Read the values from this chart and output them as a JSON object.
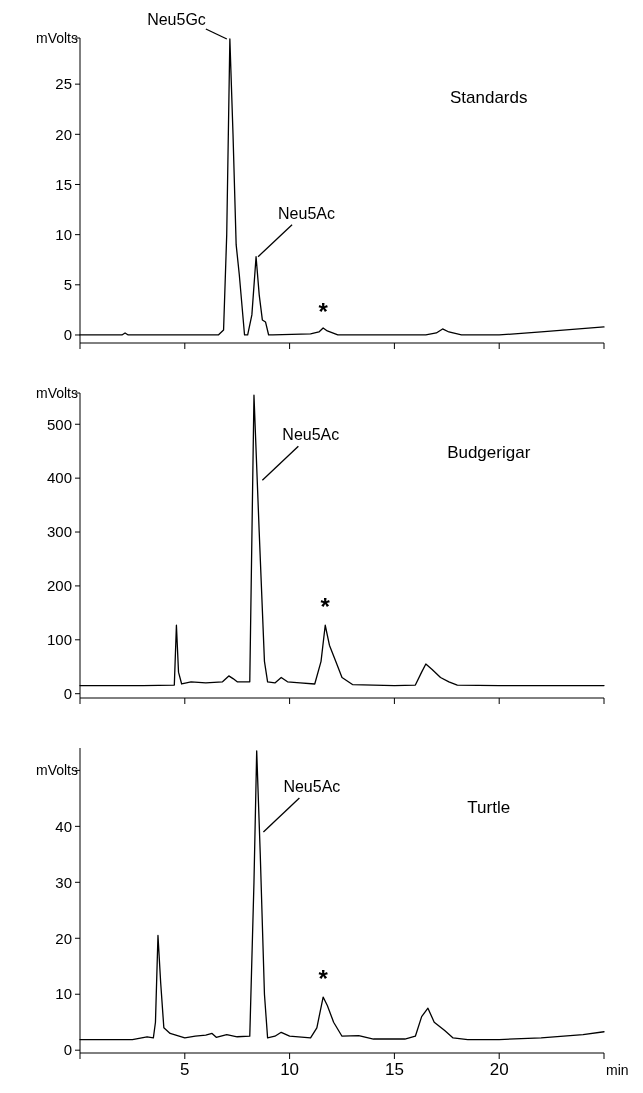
{
  "chart_data": [
    {
      "type": "line",
      "title": "Standards",
      "ylabel": "mVolts",
      "color": "#000000",
      "tick_labels": "y",
      "x": [
        0,
        2.0,
        2.15,
        2.3,
        6.6,
        6.85,
        7.0,
        7.15,
        7.3,
        7.45,
        7.6,
        7.85,
        8.0,
        8.2,
        8.4,
        8.55,
        8.7,
        8.85,
        9.0,
        9.2,
        11.0,
        11.4,
        11.6,
        11.8,
        12.3,
        13,
        16.5,
        17.0,
        17.3,
        17.6,
        18.2,
        20,
        22,
        25
      ],
      "values": [
        0,
        0,
        0.2,
        0,
        0,
        0.5,
        10,
        29.5,
        20,
        9,
        6,
        0,
        0,
        2,
        7.8,
        4,
        1.5,
        1.3,
        0,
        0,
        0.1,
        0.3,
        0.7,
        0.4,
        0,
        0,
        0,
        0.2,
        0.6,
        0.3,
        0,
        0,
        0.3,
        0.8
      ],
      "xlim": [
        0,
        25
      ],
      "xticks": [
        {
          "value": 0,
          "label": null
        },
        {
          "value": 5,
          "label": null
        },
        {
          "value": 10,
          "label": null
        },
        {
          "value": 15,
          "label": null
        },
        {
          "value": 20,
          "label": null
        },
        {
          "value": 25,
          "label": null
        }
      ],
      "ylim": [
        -0.8,
        29.6
      ],
      "yticks": [
        0,
        5,
        10,
        15,
        20,
        25,
        {
          "value": 29.6,
          "label": null
        }
      ],
      "annotations": [
        {
          "text": "Neu5Gc",
          "x": 7.15,
          "y": 29.5
        },
        {
          "text": "Neu5Ac",
          "x": 8.4,
          "y": 7.8
        },
        {
          "text": "*",
          "x": 11.6,
          "y": 0.7
        }
      ]
    },
    {
      "type": "line",
      "title": "Budgerigar",
      "ylabel": "mVolts",
      "color": "#000000",
      "tick_labels": "y",
      "x": [
        0,
        3.0,
        4.5,
        4.6,
        4.7,
        4.85,
        5.3,
        6.0,
        6.8,
        7.1,
        7.3,
        7.5,
        8.1,
        8.3,
        8.55,
        8.8,
        8.95,
        9.3,
        9.6,
        9.9,
        10.5,
        11.2,
        11.5,
        11.7,
        11.9,
        12.2,
        12.5,
        13,
        15,
        16.0,
        16.3,
        16.5,
        16.8,
        17.2,
        17.6,
        18.0,
        20,
        25
      ],
      "values": [
        15,
        15,
        16,
        127,
        40,
        18,
        22,
        20,
        22,
        33,
        28,
        22,
        22,
        554,
        300,
        60,
        22,
        20,
        30,
        22,
        20,
        18,
        60,
        127,
        90,
        60,
        30,
        17,
        15,
        16,
        40,
        55,
        45,
        30,
        22,
        16,
        15,
        15
      ],
      "xlim": [
        0,
        25
      ],
      "xticks": [
        {
          "value": 0,
          "label": null
        },
        {
          "value": 5,
          "label": null
        },
        {
          "value": 10,
          "label": null
        },
        {
          "value": 15,
          "label": null
        },
        {
          "value": 20,
          "label": null
        },
        {
          "value": 25,
          "label": null
        }
      ],
      "ylim": [
        -8,
        558
      ],
      "yticks": [
        0,
        100,
        200,
        300,
        400,
        500,
        {
          "value": 558,
          "label": null
        }
      ],
      "annotations": [
        {
          "text": "Neu5Ac",
          "x": 8.7,
          "y": 396
        },
        {
          "text": "*",
          "x": 11.7,
          "y": 127
        }
      ]
    },
    {
      "type": "line",
      "title": "Turtle",
      "ylabel": "mVolts",
      "xlabel": "min",
      "color": "#000000",
      "x": [
        0,
        2.5,
        3.2,
        3.5,
        3.6,
        3.72,
        3.85,
        4.0,
        4.3,
        5.0,
        5.5,
        6.0,
        6.3,
        6.5,
        7.0,
        7.5,
        8.1,
        8.3,
        8.43,
        8.6,
        8.8,
        8.95,
        9.3,
        9.6,
        10.0,
        11.0,
        11.3,
        11.6,
        11.8,
        12.1,
        12.5,
        13.3,
        14,
        15.5,
        16.0,
        16.3,
        16.6,
        16.9,
        17.4,
        17.8,
        18.5,
        20,
        22,
        24,
        25
      ],
      "values": [
        1.9,
        1.9,
        2.4,
        2.2,
        5,
        20.5,
        12,
        4,
        3,
        2.2,
        2.5,
        2.7,
        3.0,
        2.3,
        2.8,
        2.4,
        2.5,
        30,
        53.5,
        35,
        10,
        2.2,
        2.5,
        3.2,
        2.5,
        2.2,
        4,
        9.5,
        8,
        5,
        2.5,
        2.6,
        2,
        2.0,
        2.5,
        6,
        7.5,
        5,
        3.5,
        2.2,
        1.9,
        1.9,
        2.2,
        2.8,
        3.3
      ],
      "xlim": [
        0,
        25
      ],
      "xticks": [
        {
          "value": 0,
          "label": null
        },
        5,
        10,
        15,
        20,
        {
          "value": 25,
          "label": null
        }
      ],
      "ylim": [
        -0.5,
        54
      ],
      "yticks": [
        0,
        10,
        20,
        30,
        40,
        {
          "value": 50,
          "label": null
        }
      ],
      "annotations": [
        {
          "text": "Neu5Ac",
          "x": 8.75,
          "y": 39
        },
        {
          "text": "*",
          "x": 11.6,
          "y": 9.5
        }
      ]
    }
  ]
}
